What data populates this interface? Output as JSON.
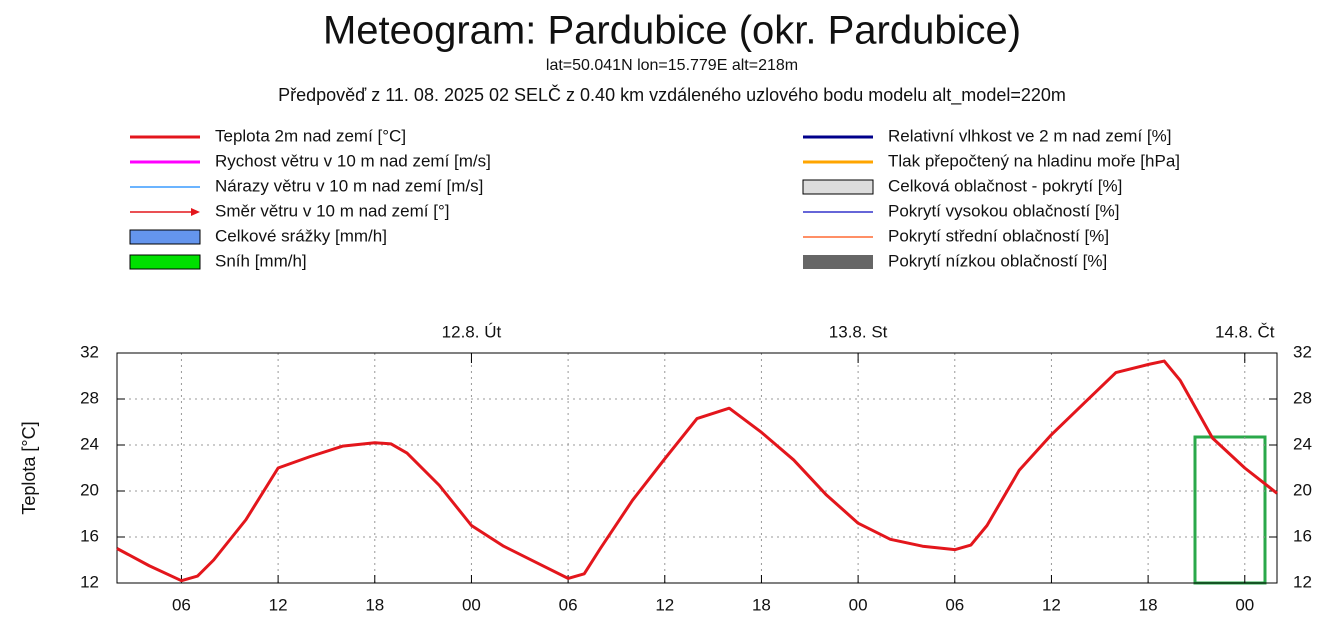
{
  "chart_data": {
    "type": "line",
    "title": "Meteogram: Pardubice (okr. Pardubice)",
    "subtitle": "lat=50.041N lon=15.779E alt=218m",
    "forecast_note": "Předpověď z 11. 08. 2025 02 SELČ z 0.40 km vzdáleného uzlového bodu modelu alt_model=220m",
    "y_label": "Teplota [°C]",
    "x": [
      2,
      4,
      6,
      7,
      8,
      10,
      12,
      14,
      16,
      18,
      19,
      20,
      22,
      24,
      26,
      28,
      30,
      31,
      32,
      34,
      36,
      38,
      40,
      42,
      44,
      46,
      48,
      50,
      52,
      54,
      55,
      56,
      58,
      60,
      62,
      64,
      66,
      67,
      68,
      70,
      72,
      74
    ],
    "series": [
      {
        "name": "Teplota 2m nad zemí [°C]",
        "color": "#e3161c",
        "values": [
          15.0,
          13.5,
          12.2,
          12.6,
          14.0,
          17.5,
          22.0,
          23.0,
          23.9,
          24.2,
          24.1,
          23.3,
          20.5,
          17.0,
          15.2,
          13.8,
          12.4,
          12.8,
          15.0,
          19.2,
          22.8,
          26.3,
          27.2,
          25.1,
          22.7,
          19.7,
          17.2,
          15.8,
          15.2,
          14.9,
          15.3,
          17.0,
          21.8,
          24.9,
          27.6,
          30.3,
          31.0,
          31.3,
          29.6,
          24.6,
          22.0,
          19.8
        ]
      }
    ],
    "legend_extra": [
      {
        "label": "Rychost větru v 10 m nad zemí [m/s]",
        "color": "#ff00ff",
        "style": "line"
      },
      {
        "label": "Nárazy větru v 10 m nad zemí [m/s]",
        "color": "#3a9bff",
        "style": "thin"
      },
      {
        "label": "Směr větru v 10 m nad zemí [°]",
        "color": "#e3161c",
        "style": "arrow"
      },
      {
        "label": "Celkové srážky [mm/h]",
        "color": "#6495ed",
        "style": "box"
      },
      {
        "label": "Sníh [mm/h]",
        "color": "#00e000",
        "style": "box"
      },
      {
        "label": "Relativní vlhkost ve 2 m nad zemí [%]",
        "color": "#00008b",
        "style": "line"
      },
      {
        "label": "Tlak přepočtený na hladinu moře [hPa]",
        "color": "#ffa500",
        "style": "line"
      },
      {
        "label": "Celková oblačnost - pokrytí [%]",
        "color": "#dddddd",
        "style": "box"
      },
      {
        "label": "Pokrytí vysokou oblačností [%]",
        "color": "#3333cc",
        "style": "thin"
      },
      {
        "label": "Pokrytí střední oblačností [%]",
        "color": "#ff6a33",
        "style": "thin"
      },
      {
        "label": "Pokrytí nízkou oblačností [%]",
        "color": "#666666",
        "style": "solidbox"
      }
    ],
    "xlim": [
      2,
      74
    ],
    "xticks": [
      {
        "value": 6,
        "label": "06"
      },
      {
        "value": 12,
        "label": "12"
      },
      {
        "value": 18,
        "label": "18"
      },
      {
        "value": 24,
        "label": "00"
      },
      {
        "value": 30,
        "label": "06"
      },
      {
        "value": 36,
        "label": "12"
      },
      {
        "value": 42,
        "label": "18"
      },
      {
        "value": 48,
        "label": "00"
      },
      {
        "value": 54,
        "label": "06"
      },
      {
        "value": 60,
        "label": "12"
      },
      {
        "value": 66,
        "label": "18"
      },
      {
        "value": 72,
        "label": "00"
      }
    ],
    "top_ticks": [
      {
        "value": 24,
        "label": "12.8. Út"
      },
      {
        "value": 48,
        "label": "13.8. St"
      },
      {
        "value": 72,
        "label": "14.8. Čt"
      }
    ],
    "ylim": [
      12,
      32
    ],
    "yticks": [
      12,
      16,
      20,
      24,
      28,
      32
    ],
    "grid": true
  }
}
